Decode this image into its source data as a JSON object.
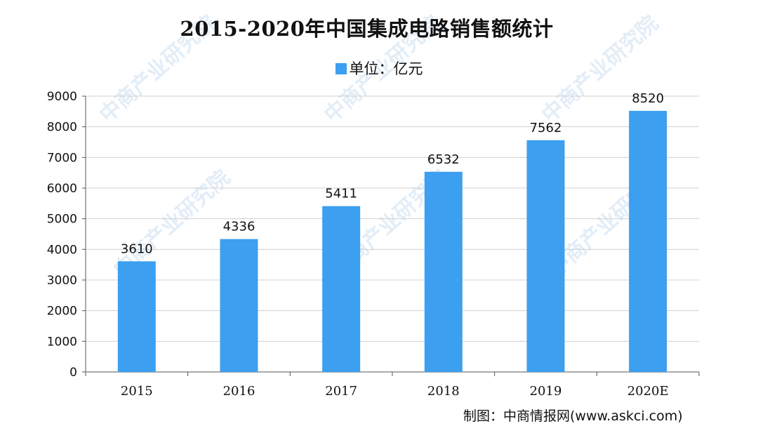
{
  "chart_data": {
    "type": "bar",
    "title": "2015-2020年中国集成电路销售额统计",
    "legend": {
      "label": "单位：亿元",
      "position": "top-center"
    },
    "categories": [
      "2015",
      "2016",
      "2017",
      "2018",
      "2019",
      "2020E"
    ],
    "series": [
      {
        "name": "单位：亿元",
        "values": [
          3610,
          4336,
          5411,
          6532,
          7562,
          8520
        ]
      }
    ],
    "data_labels": [
      "3610",
      "4336",
      "5411",
      "6532",
      "7562",
      "8520"
    ],
    "yticks": [
      0,
      1000,
      2000,
      3000,
      4000,
      5000,
      6000,
      7000,
      8000,
      9000
    ],
    "ylim": [
      0,
      9000
    ],
    "grid": true,
    "bar_color": "#3c9ff0",
    "xlabel": "",
    "ylabel": ""
  },
  "source": "制图：中商情报网(www.askci.com)",
  "watermark": "中商产业研究院"
}
